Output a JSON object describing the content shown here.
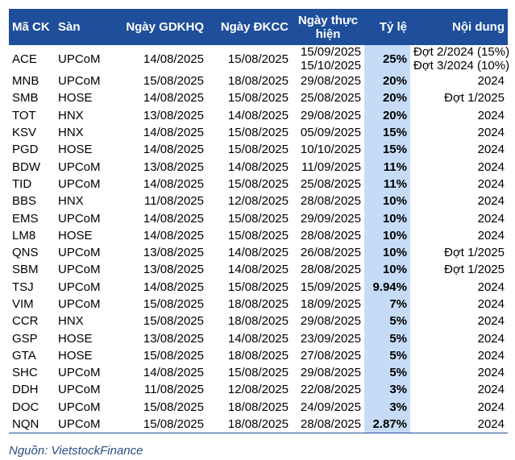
{
  "headers": {
    "ticker": "Mã CK",
    "exchange": "Sàn",
    "ex_date": "Ngày GDKHQ",
    "record_date": "Ngày ĐKCC",
    "pay_date": "Ngày thực hiện",
    "ratio": "Tỷ lệ",
    "content": "Nội dung"
  },
  "rows": [
    {
      "ticker": "ACE",
      "exchange": "UPCoM",
      "ex_date": "14/08/2025",
      "record_date": "15/08/2025",
      "pay_date": [
        "15/09/2025",
        "15/10/2025"
      ],
      "ratio": "25%",
      "content": [
        "Đợt 2/2024 (15%)",
        "Đợt 3/2024 (10%)"
      ]
    },
    {
      "ticker": "MNB",
      "exchange": "UPCoM",
      "ex_date": "15/08/2025",
      "record_date": "18/08/2025",
      "pay_date": [
        "29/08/2025"
      ],
      "ratio": "20%",
      "content": [
        "2024"
      ]
    },
    {
      "ticker": "SMB",
      "exchange": "HOSE",
      "ex_date": "14/08/2025",
      "record_date": "15/08/2025",
      "pay_date": [
        "25/08/2025"
      ],
      "ratio": "20%",
      "content": [
        "Đợt 1/2025"
      ]
    },
    {
      "ticker": "TOT",
      "exchange": "HNX",
      "ex_date": "13/08/2025",
      "record_date": "14/08/2025",
      "pay_date": [
        "29/08/2025"
      ],
      "ratio": "20%",
      "content": [
        "2024"
      ]
    },
    {
      "ticker": "KSV",
      "exchange": "HNX",
      "ex_date": "14/08/2025",
      "record_date": "15/08/2025",
      "pay_date": [
        "05/09/2025"
      ],
      "ratio": "15%",
      "content": [
        "2024"
      ]
    },
    {
      "ticker": "PGD",
      "exchange": "HOSE",
      "ex_date": "14/08/2025",
      "record_date": "15/08/2025",
      "pay_date": [
        "10/10/2025"
      ],
      "ratio": "15%",
      "content": [
        "2024"
      ]
    },
    {
      "ticker": "BDW",
      "exchange": "UPCoM",
      "ex_date": "13/08/2025",
      "record_date": "14/08/2025",
      "pay_date": [
        "11/09/2025"
      ],
      "ratio": "11%",
      "content": [
        "2024"
      ]
    },
    {
      "ticker": "TID",
      "exchange": "UPCoM",
      "ex_date": "14/08/2025",
      "record_date": "15/08/2025",
      "pay_date": [
        "25/08/2025"
      ],
      "ratio": "11%",
      "content": [
        "2024"
      ]
    },
    {
      "ticker": "BBS",
      "exchange": "HNX",
      "ex_date": "11/08/2025",
      "record_date": "12/08/2025",
      "pay_date": [
        "28/08/2025"
      ],
      "ratio": "10%",
      "content": [
        "2024"
      ]
    },
    {
      "ticker": "EMS",
      "exchange": "UPCoM",
      "ex_date": "14/08/2025",
      "record_date": "15/08/2025",
      "pay_date": [
        "29/09/2025"
      ],
      "ratio": "10%",
      "content": [
        "2024"
      ]
    },
    {
      "ticker": "LM8",
      "exchange": "HOSE",
      "ex_date": "14/08/2025",
      "record_date": "15/08/2025",
      "pay_date": [
        "28/08/2025"
      ],
      "ratio": "10%",
      "content": [
        "2024"
      ]
    },
    {
      "ticker": "QNS",
      "exchange": "UPCoM",
      "ex_date": "13/08/2025",
      "record_date": "14/08/2025",
      "pay_date": [
        "26/08/2025"
      ],
      "ratio": "10%",
      "content": [
        "Đợt 1/2025"
      ]
    },
    {
      "ticker": "SBM",
      "exchange": "UPCoM",
      "ex_date": "13/08/2025",
      "record_date": "14/08/2025",
      "pay_date": [
        "28/08/2025"
      ],
      "ratio": "10%",
      "content": [
        "Đợt 1/2025"
      ]
    },
    {
      "ticker": "TSJ",
      "exchange": "UPCoM",
      "ex_date": "14/08/2025",
      "record_date": "15/08/2025",
      "pay_date": [
        "15/09/2025"
      ],
      "ratio": "9.94%",
      "content": [
        "2024"
      ]
    },
    {
      "ticker": "VIM",
      "exchange": "UPCoM",
      "ex_date": "15/08/2025",
      "record_date": "18/08/2025",
      "pay_date": [
        "18/09/2025"
      ],
      "ratio": "7%",
      "content": [
        "2024"
      ]
    },
    {
      "ticker": "CCR",
      "exchange": "HNX",
      "ex_date": "15/08/2025",
      "record_date": "18/08/2025",
      "pay_date": [
        "29/08/2025"
      ],
      "ratio": "5%",
      "content": [
        "2024"
      ]
    },
    {
      "ticker": "GSP",
      "exchange": "HOSE",
      "ex_date": "13/08/2025",
      "record_date": "14/08/2025",
      "pay_date": [
        "23/09/2025"
      ],
      "ratio": "5%",
      "content": [
        "2024"
      ]
    },
    {
      "ticker": "GTA",
      "exchange": "HOSE",
      "ex_date": "15/08/2025",
      "record_date": "18/08/2025",
      "pay_date": [
        "27/08/2025"
      ],
      "ratio": "5%",
      "content": [
        "2024"
      ]
    },
    {
      "ticker": "SHC",
      "exchange": "UPCoM",
      "ex_date": "14/08/2025",
      "record_date": "15/08/2025",
      "pay_date": [
        "29/08/2025"
      ],
      "ratio": "5%",
      "content": [
        "2024"
      ]
    },
    {
      "ticker": "DDH",
      "exchange": "UPCoM",
      "ex_date": "11/08/2025",
      "record_date": "12/08/2025",
      "pay_date": [
        "22/08/2025"
      ],
      "ratio": "3%",
      "content": [
        "2024"
      ]
    },
    {
      "ticker": "DOC",
      "exchange": "UPCoM",
      "ex_date": "15/08/2025",
      "record_date": "18/08/2025",
      "pay_date": [
        "24/09/2025"
      ],
      "ratio": "3%",
      "content": [
        "2024"
      ]
    },
    {
      "ticker": "NQN",
      "exchange": "UPCoM",
      "ex_date": "15/08/2025",
      "record_date": "18/08/2025",
      "pay_date": [
        "28/08/2025"
      ],
      "ratio": "2.87%",
      "content": [
        "2024"
      ]
    }
  ],
  "source": "Nguồn: VietstockFinance",
  "colors": {
    "header_bg": "#1f4e9b",
    "ratio_bg": "#c6dcf6",
    "source_text": "#2a4d83"
  }
}
